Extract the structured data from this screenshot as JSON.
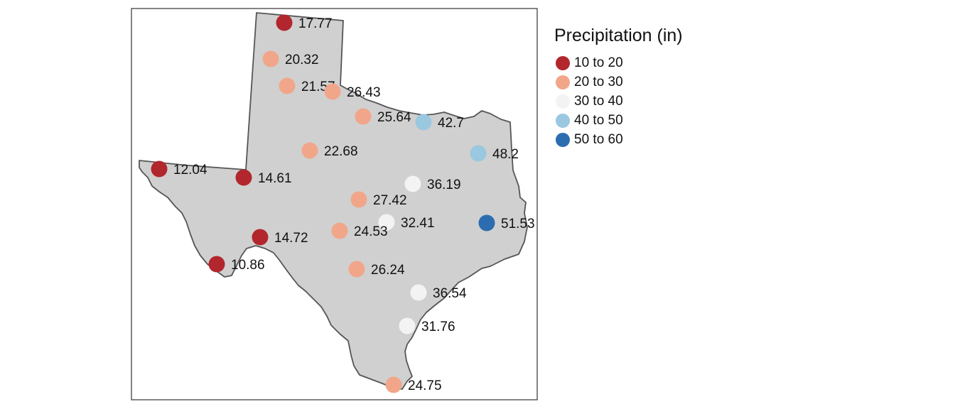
{
  "legend": {
    "title": "Precipitation (in)",
    "classes": [
      {
        "label": "10 to 20",
        "color": "#b2262d",
        "min": 10,
        "max": 20
      },
      {
        "label": "20 to 30",
        "color": "#f1a68a",
        "min": 20,
        "max": 30
      },
      {
        "label": "30 to 40",
        "color": "#f3f3f3",
        "min": 30,
        "max": 40
      },
      {
        "label": "40 to 50",
        "color": "#99c8e0",
        "min": 40,
        "max": 50
      },
      {
        "label": "50 to 60",
        "color": "#2c6db0",
        "min": 50,
        "max": 60
      }
    ]
  },
  "map": {
    "fill_color": "#d0d0d0",
    "border_color": "#555555",
    "stations": [
      {
        "value": 17.77,
        "label": "17.77"
      },
      {
        "value": 20.32,
        "label": "20.32"
      },
      {
        "value": 21.57,
        "label": "21.57"
      },
      {
        "value": 26.43,
        "label": "26.43"
      },
      {
        "value": 25.64,
        "label": "25.64"
      },
      {
        "value": 42.7,
        "label": "42.7"
      },
      {
        "value": 48.2,
        "label": "48.2"
      },
      {
        "value": 22.68,
        "label": "22.68"
      },
      {
        "value": 12.04,
        "label": "12.04"
      },
      {
        "value": 14.61,
        "label": "14.61"
      },
      {
        "value": 36.19,
        "label": "36.19"
      },
      {
        "value": 27.42,
        "label": "27.42"
      },
      {
        "value": 32.41,
        "label": "32.41"
      },
      {
        "value": 51.53,
        "label": "51.53"
      },
      {
        "value": 24.53,
        "label": "24.53"
      },
      {
        "value": 14.72,
        "label": "14.72"
      },
      {
        "value": 10.86,
        "label": "10.86"
      },
      {
        "value": 26.24,
        "label": "26.24"
      },
      {
        "value": 36.54,
        "label": "36.54"
      },
      {
        "value": 31.76,
        "label": "31.76"
      },
      {
        "value": 24.75,
        "label": "24.75"
      }
    ]
  }
}
